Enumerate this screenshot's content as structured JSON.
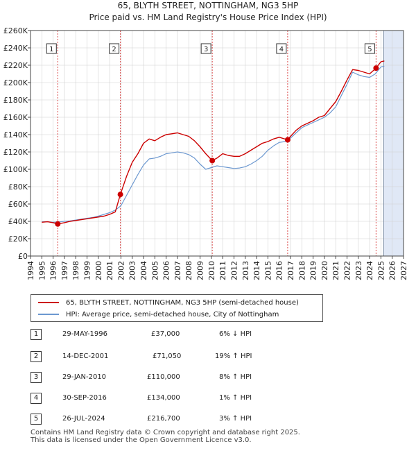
{
  "header": {
    "title": "65, BLYTH STREET, NOTTINGHAM, NG3 5HP",
    "subtitle": "Price paid vs. HM Land Registry's House Price Index (HPI)"
  },
  "colors": {
    "property": "#cc0000",
    "hpi": "#6c98d0",
    "marker_line": "#cc0000",
    "shade": "#dde6f5"
  },
  "chart_data": {
    "type": "line",
    "title": "65, BLYTH STREET, NOTTINGHAM, NG3 5HP",
    "subtitle": "Price paid vs. HM Land Registry's House Price Index (HPI)",
    "xlabel": "",
    "ylabel": "",
    "xlim": [
      1994,
      2027
    ],
    "ylim": [
      0,
      260000
    ],
    "y_ticks": [
      0,
      20000,
      40000,
      60000,
      80000,
      100000,
      120000,
      140000,
      160000,
      180000,
      200000,
      220000,
      240000,
      260000
    ],
    "y_tick_labels": [
      "£0",
      "£20K",
      "£40K",
      "£60K",
      "£80K",
      "£100K",
      "£120K",
      "£140K",
      "£160K",
      "£180K",
      "£200K",
      "£220K",
      "£240K",
      "£260K"
    ],
    "x_ticks": [
      1994,
      1995,
      1996,
      1997,
      1998,
      1999,
      2000,
      2001,
      2002,
      2003,
      2004,
      2005,
      2006,
      2007,
      2008,
      2009,
      2010,
      2011,
      2012,
      2013,
      2014,
      2015,
      2016,
      2017,
      2018,
      2019,
      2020,
      2021,
      2022,
      2023,
      2024,
      2025,
      2026,
      2027
    ],
    "x_tick_labels": [
      "1994",
      "1995",
      "1996",
      "1997",
      "1998",
      "1999",
      "2000",
      "2001",
      "2002",
      "2003",
      "2004",
      "2005",
      "2006",
      "2007",
      "2008",
      "2009",
      "2010",
      "2011",
      "2012",
      "2013",
      "2014",
      "2015",
      "2016",
      "2017",
      "2018",
      "2019",
      "2020",
      "2021",
      "2022",
      "2023",
      "2024",
      "2025",
      "2026",
      "2027"
    ],
    "grid": true,
    "legend_position": "bottom",
    "forecast_start": 2025.25,
    "series": [
      {
        "name": "65, BLYTH STREET, NOTTINGHAM, NG3 5HP (semi-detached house)",
        "color": "#cc0000",
        "x": [
          1995.0,
          1995.5,
          1996.0,
          1996.41,
          1997.0,
          1997.5,
          1998.0,
          1998.5,
          1999.0,
          1999.5,
          2000.0,
          2000.5,
          2001.0,
          2001.5,
          2001.95,
          2002.5,
          2003.0,
          2003.5,
          2004.0,
          2004.5,
          2005.0,
          2005.5,
          2006.0,
          2006.5,
          2007.0,
          2007.5,
          2008.0,
          2008.5,
          2009.0,
          2009.5,
          2010.08,
          2010.5,
          2011.0,
          2011.5,
          2012.0,
          2012.5,
          2013.0,
          2013.5,
          2014.0,
          2014.5,
          2015.0,
          2015.5,
          2016.0,
          2016.75,
          2017.0,
          2017.5,
          2018.0,
          2018.5,
          2019.0,
          2019.5,
          2020.0,
          2020.5,
          2021.0,
          2021.5,
          2022.0,
          2022.5,
          2023.0,
          2023.5,
          2024.0,
          2024.57,
          2025.0,
          2025.3
        ],
        "y": [
          39000,
          39500,
          38500,
          37000,
          38500,
          40000,
          41000,
          42000,
          43000,
          44000,
          45000,
          46000,
          48000,
          51000,
          71050,
          92000,
          108000,
          118000,
          130000,
          135000,
          133000,
          137000,
          140000,
          141000,
          142000,
          140000,
          138000,
          133000,
          126000,
          118000,
          110000,
          113000,
          118000,
          116000,
          115000,
          115000,
          118000,
          122000,
          126000,
          130000,
          132000,
          135000,
          137000,
          134000,
          138000,
          145000,
          150000,
          153000,
          156000,
          160000,
          162000,
          170000,
          178000,
          190000,
          203000,
          215000,
          214000,
          212000,
          210000,
          216700,
          224000,
          225000
        ]
      },
      {
        "name": "HPI: Average price, semi-detached house, City of Nottingham",
        "color": "#6c98d0",
        "x": [
          1995.0,
          1995.5,
          1996.0,
          1996.5,
          1997.0,
          1997.5,
          1998.0,
          1998.5,
          1999.0,
          1999.5,
          2000.0,
          2000.5,
          2001.0,
          2001.5,
          2002.0,
          2002.5,
          2003.0,
          2003.5,
          2004.0,
          2004.5,
          2005.0,
          2005.5,
          2006.0,
          2006.5,
          2007.0,
          2007.5,
          2008.0,
          2008.5,
          2009.0,
          2009.5,
          2010.0,
          2010.5,
          2011.0,
          2011.5,
          2012.0,
          2012.5,
          2013.0,
          2013.5,
          2014.0,
          2014.5,
          2015.0,
          2015.5,
          2016.0,
          2016.5,
          2017.0,
          2017.5,
          2018.0,
          2018.5,
          2019.0,
          2019.5,
          2020.0,
          2020.5,
          2021.0,
          2021.5,
          2022.0,
          2022.5,
          2023.0,
          2023.5,
          2024.0,
          2024.5,
          2025.0,
          2025.3
        ],
        "y": [
          39500,
          39500,
          39000,
          39300,
          40000,
          40500,
          41500,
          42500,
          43500,
          44500,
          46000,
          48000,
          50000,
          53000,
          58000,
          70000,
          82000,
          94000,
          105000,
          112000,
          113000,
          115000,
          118000,
          119000,
          120000,
          119000,
          117000,
          113000,
          106000,
          100000,
          102000,
          104000,
          103000,
          102000,
          101000,
          101500,
          103000,
          106000,
          110000,
          115000,
          122000,
          127000,
          131000,
          132000,
          136000,
          142000,
          148000,
          151000,
          154000,
          157000,
          160000,
          165000,
          172000,
          185000,
          198000,
          212000,
          209000,
          207000,
          206000,
          210000,
          218000,
          219000
        ]
      }
    ],
    "transactions": [
      {
        "label": "1",
        "x": 1996.41,
        "y": 37000
      },
      {
        "label": "2",
        "x": 2001.95,
        "y": 71050
      },
      {
        "label": "3",
        "x": 2010.08,
        "y": 110000
      },
      {
        "label": "4",
        "x": 2016.75,
        "y": 134000
      },
      {
        "label": "5",
        "x": 2024.57,
        "y": 216700
      }
    ]
  },
  "legend": {
    "property_label": "65, BLYTH STREET, NOTTINGHAM, NG3 5HP (semi-detached house)",
    "hpi_label": "HPI: Average price, semi-detached house, City of Nottingham"
  },
  "table": [
    {
      "num": "1",
      "date": "29-MAY-1996",
      "price": "£37,000",
      "hpi": "6% ↓ HPI"
    },
    {
      "num": "2",
      "date": "14-DEC-2001",
      "price": "£71,050",
      "hpi": "19% ↑ HPI"
    },
    {
      "num": "3",
      "date": "29-JAN-2010",
      "price": "£110,000",
      "hpi": "8% ↑ HPI"
    },
    {
      "num": "4",
      "date": "30-SEP-2016",
      "price": "£134,000",
      "hpi": "1% ↑ HPI"
    },
    {
      "num": "5",
      "date": "26-JUL-2024",
      "price": "£216,700",
      "hpi": "3% ↑ HPI"
    }
  ],
  "footer": {
    "line1": "Contains HM Land Registry data © Crown copyright and database right 2025.",
    "line2": "This data is licensed under the Open Government Licence v3.0."
  }
}
